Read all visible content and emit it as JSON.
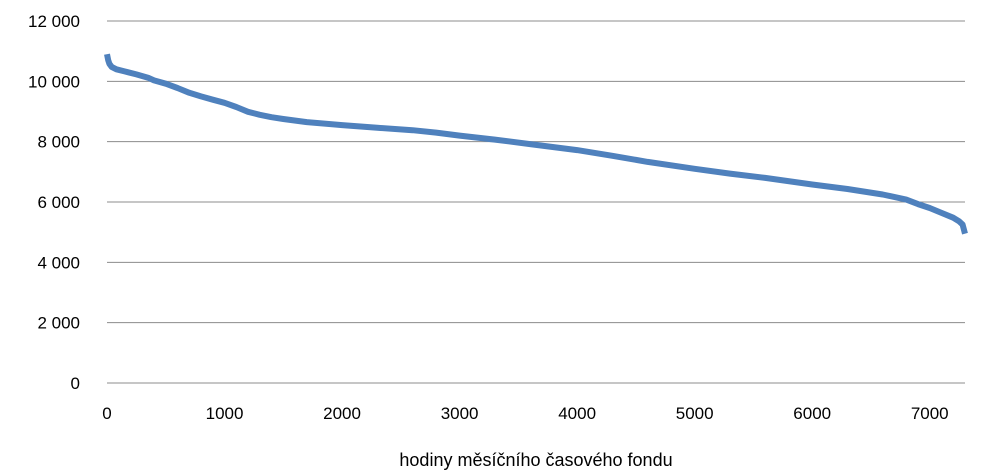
{
  "chart_data": {
    "type": "line",
    "title": "",
    "xlabel": "hodiny měsíčního časového fondu",
    "ylabel": "",
    "xlim": [
      0,
      7300
    ],
    "ylim": [
      0,
      12000
    ],
    "x_ticks": [
      0,
      1000,
      2000,
      3000,
      4000,
      5000,
      6000,
      7000
    ],
    "x_tick_labels": [
      "0",
      "1000",
      "2000",
      "3000",
      "4000",
      "5000",
      "6000",
      "7000"
    ],
    "y_ticks": [
      0,
      2000,
      4000,
      6000,
      8000,
      10000,
      12000
    ],
    "y_tick_labels": [
      "0",
      "2 000",
      "4 000",
      "6 000",
      "8 000",
      "10 000",
      "12 000"
    ],
    "grid": "horizontal",
    "legend": "none",
    "color": "#4F81BD",
    "series": [
      {
        "x": [
          0,
          10,
          20,
          40,
          80,
          150,
          250,
          350,
          400,
          500,
          600,
          700,
          800,
          900,
          1000,
          1100,
          1200,
          1300,
          1400,
          1500,
          1700,
          2000,
          2300,
          2600,
          2800,
          3000,
          3300,
          3600,
          4000,
          4300,
          4600,
          5000,
          5300,
          5600,
          6000,
          6300,
          6600,
          6800,
          6900,
          7000,
          7100,
          7200,
          7250,
          7280,
          7300
        ],
        "y": [
          10900,
          10700,
          10580,
          10480,
          10400,
          10330,
          10230,
          10120,
          10030,
          9920,
          9780,
          9620,
          9500,
          9390,
          9290,
          9150,
          8990,
          8890,
          8810,
          8750,
          8650,
          8550,
          8460,
          8380,
          8300,
          8200,
          8070,
          7920,
          7720,
          7530,
          7330,
          7100,
          6940,
          6800,
          6580,
          6430,
          6250,
          6080,
          5930,
          5800,
          5640,
          5480,
          5360,
          5250,
          4950
        ]
      }
    ]
  }
}
